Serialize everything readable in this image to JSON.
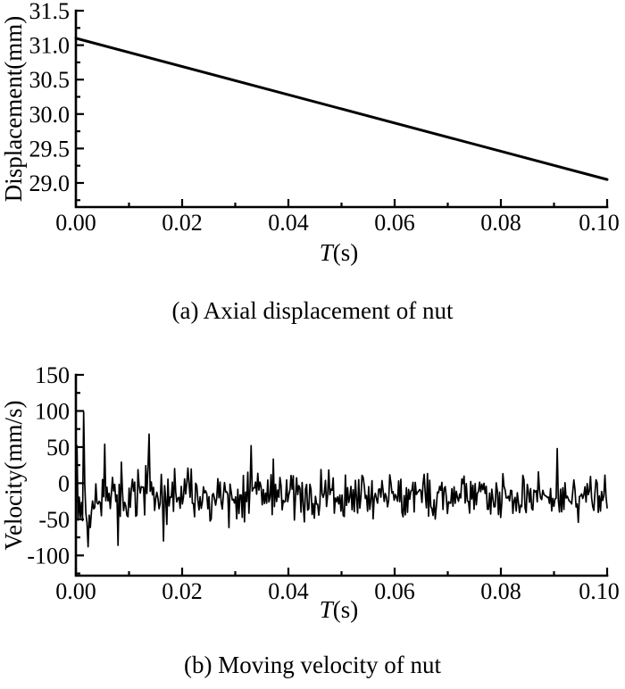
{
  "page": {
    "background": "#ffffff",
    "ink": "#000000"
  },
  "chart_data": [
    {
      "id": "axial-displacement",
      "type": "line",
      "caption": "(a) Axial displacement of nut",
      "xlabel_parts": [
        {
          "text": "T",
          "italic": true
        },
        {
          "text": "(s)",
          "italic": false
        }
      ],
      "ylabel": "Displacement(mm)",
      "xlim": [
        0,
        0.1
      ],
      "ylim": [
        28.65,
        31.5
      ],
      "xticks": [
        {
          "v": 0.0,
          "label": "0.00"
        },
        {
          "v": 0.02,
          "label": "0.02"
        },
        {
          "v": 0.04,
          "label": "0.04"
        },
        {
          "v": 0.06,
          "label": "0.06"
        },
        {
          "v": 0.08,
          "label": "0.08"
        },
        {
          "v": 0.1,
          "label": "0.10"
        }
      ],
      "yticks": [
        {
          "v": 29.0,
          "label": "29.0"
        },
        {
          "v": 29.5,
          "label": "29.5"
        },
        {
          "v": 30.0,
          "label": "30.0"
        },
        {
          "v": 30.5,
          "label": "30.5"
        },
        {
          "v": 31.0,
          "label": "31.0"
        },
        {
          "v": 31.5,
          "label": "31.5"
        }
      ],
      "minor_x_step": 0.01,
      "minor_y_step": 0.25,
      "grid": false,
      "legend": null,
      "series": [
        {
          "name": "nut-axial-displacement-mm",
          "color": "#000000",
          "x": [
            0.0,
            0.1
          ],
          "y": [
            31.1,
            29.05
          ],
          "description": "straight line decreasing from about 31.1 mm at T=0 s to about 29.05 mm at T=0.10 s"
        }
      ]
    },
    {
      "id": "moving-velocity",
      "type": "line",
      "caption": "(b) Moving velocity of nut",
      "xlabel_parts": [
        {
          "text": "T",
          "italic": true
        },
        {
          "text": "(s)",
          "italic": false
        }
      ],
      "ylabel": "Velocity(mm/s)",
      "xlim": [
        0,
        0.1
      ],
      "ylim": [
        -128,
        150
      ],
      "xticks": [
        {
          "v": 0.0,
          "label": "0.00"
        },
        {
          "v": 0.02,
          "label": "0.02"
        },
        {
          "v": 0.04,
          "label": "0.04"
        },
        {
          "v": 0.06,
          "label": "0.06"
        },
        {
          "v": 0.08,
          "label": "0.08"
        },
        {
          "v": 0.1,
          "label": "0.10"
        }
      ],
      "yticks": [
        {
          "v": -100,
          "label": "-100"
        },
        {
          "v": -50,
          "label": "-50"
        },
        {
          "v": 0,
          "label": "0"
        },
        {
          "v": 50,
          "label": "50"
        },
        {
          "v": 100,
          "label": "100"
        },
        {
          "v": 150,
          "label": "150"
        }
      ],
      "minor_x_step": 0.01,
      "minor_y_step": 25,
      "grid": false,
      "legend": null,
      "series": [
        {
          "name": "nut-moving-velocity-mm-per-s",
          "color": "#000000",
          "generator": {
            "kind": "seeded-random-noise",
            "seed": 1371,
            "points": 480,
            "mean": -18,
            "amplitude_base": 33,
            "amplitude_extra": 28,
            "decay_tau": 0.03,
            "tail_chance": 0.05,
            "tail_gain": 1.45,
            "clamp": [
              -106,
              102
            ],
            "spikes": [
              {
                "t": 0.0003,
                "v": 52
              },
              {
                "t": 0.0014,
                "v": 99
              },
              {
                "t": 0.0022,
                "v": -88
              },
              {
                "t": 0.0054,
                "v": 54
              },
              {
                "t": 0.008,
                "v": -86
              },
              {
                "t": 0.0137,
                "v": 68
              },
              {
                "t": 0.0165,
                "v": -80
              },
              {
                "t": 0.033,
                "v": 52
              },
              {
                "t": 0.0907,
                "v": 48
              }
            ]
          },
          "description": "dense random oscillation around -18 mm/s; envelope decays from about +/-60 mm/s at T=0 to about +/-30 mm/s at T=0.1; maximum spike near +100 mm/s at T=0.0014 s, minima near -90 mm/s within first 0.02 s"
        }
      ]
    }
  ]
}
